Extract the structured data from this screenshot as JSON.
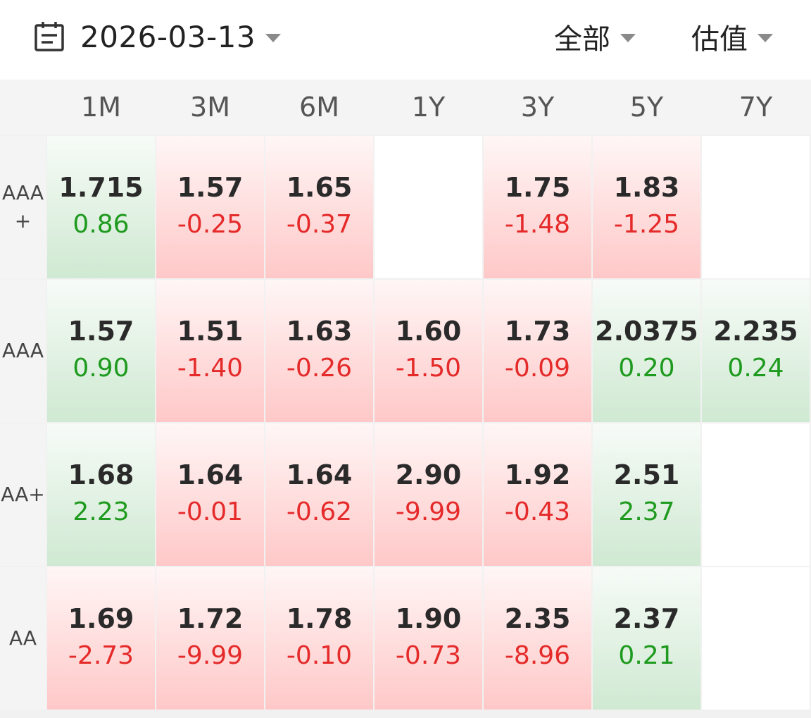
{
  "toolbar": {
    "date": "2026-03-13",
    "date_icon": "calendar-icon",
    "filter_type": "全部",
    "filter_metric": "估值"
  },
  "columns": [
    "1M",
    "3M",
    "6M",
    "1Y",
    "3Y",
    "5Y",
    "7Y"
  ],
  "rows": [
    {
      "label_lines": [
        "AAA",
        "+"
      ],
      "cells": [
        {
          "yield": "1.715",
          "change": "0.86",
          "trend": "down"
        },
        {
          "yield": "1.57",
          "change": "-0.25",
          "trend": "up"
        },
        {
          "yield": "1.65",
          "change": "-0.37",
          "trend": "up"
        },
        null,
        {
          "yield": "1.75",
          "change": "-1.48",
          "trend": "up"
        },
        {
          "yield": "1.83",
          "change": "-1.25",
          "trend": "up"
        },
        null
      ]
    },
    {
      "label_lines": [
        "AAA"
      ],
      "cells": [
        {
          "yield": "1.57",
          "change": "0.90",
          "trend": "down"
        },
        {
          "yield": "1.51",
          "change": "-1.40",
          "trend": "up"
        },
        {
          "yield": "1.63",
          "change": "-0.26",
          "trend": "up"
        },
        {
          "yield": "1.60",
          "change": "-1.50",
          "trend": "up"
        },
        {
          "yield": "1.73",
          "change": "-0.09",
          "trend": "up"
        },
        {
          "yield": "2.0375",
          "change": "0.20",
          "trend": "down"
        },
        {
          "yield": "2.235",
          "change": "0.24",
          "trend": "down"
        }
      ]
    },
    {
      "label_lines": [
        "AA+"
      ],
      "cells": [
        {
          "yield": "1.68",
          "change": "2.23",
          "trend": "down"
        },
        {
          "yield": "1.64",
          "change": "-0.01",
          "trend": "up"
        },
        {
          "yield": "1.64",
          "change": "-0.62",
          "trend": "up"
        },
        {
          "yield": "2.90",
          "change": "-9.99",
          "trend": "up"
        },
        {
          "yield": "1.92",
          "change": "-0.43",
          "trend": "up"
        },
        {
          "yield": "2.51",
          "change": "2.37",
          "trend": "down"
        },
        null
      ]
    },
    {
      "label_lines": [
        "AA"
      ],
      "cells": [
        {
          "yield": "1.69",
          "change": "-2.73",
          "trend": "up"
        },
        {
          "yield": "1.72",
          "change": "-9.99",
          "trend": "up"
        },
        {
          "yield": "1.78",
          "change": "-0.10",
          "trend": "up"
        },
        {
          "yield": "1.90",
          "change": "-0.73",
          "trend": "up"
        },
        {
          "yield": "2.35",
          "change": "-8.96",
          "trend": "up"
        },
        {
          "yield": "2.37",
          "change": "0.21",
          "trend": "down"
        },
        null
      ]
    }
  ],
  "colors": {
    "up_text": "#e52a2a",
    "down_text": "#1e9a1e",
    "up_bg": "#ffc8c8",
    "down_bg": "#cfe9d2"
  }
}
